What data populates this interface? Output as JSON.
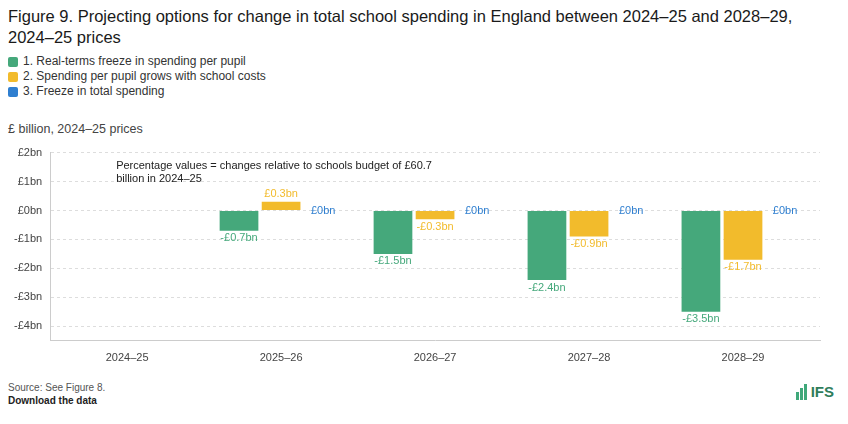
{
  "chart_data": {
    "type": "bar",
    "title": "Figure 9. Projecting options for change in total school spending in England between 2024–25 and 2028–29, 2024–25 prices",
    "y_label": "£ billion, 2024–25 prices",
    "annotation": "Percentage values = changes relative to schools budget of £60.7 billion in 2024–25",
    "source": "Source: See Figure 8.",
    "footer_link": "Download the data",
    "logo": "IFS",
    "categories": [
      "2024–25",
      "2025–26",
      "2026–27",
      "2027–28",
      "2028–29"
    ],
    "series": [
      {
        "name": "1. Real-terms freeze in spending per pupil",
        "color": "#45a87b",
        "values": [
          null,
          -0.7,
          -1.5,
          -2.4,
          -3.5
        ],
        "value_labels": [
          null,
          "-£0.7bn",
          "-£1.5bn",
          "-£2.4bn",
          "-£3.5bn"
        ]
      },
      {
        "name": "2. Spending per pupil grows with school costs",
        "color": "#f2bb2c",
        "values": [
          null,
          0.3,
          -0.3,
          -0.9,
          -1.7
        ],
        "value_labels": [
          null,
          "£0.3bn",
          "-£0.3bn",
          "-£0.9bn",
          "-£1.7bn"
        ]
      },
      {
        "name": "3. Freeze in total spending",
        "color": "#2f7fd0",
        "values": [
          null,
          0,
          0,
          0,
          0
        ],
        "value_labels": [
          null,
          "£0bn",
          "£0bn",
          "£0bn",
          "£0bn"
        ]
      }
    ],
    "ylim": [
      -4.5,
      2
    ],
    "yticks": [
      {
        "value": -4,
        "label": "-£4bn"
      },
      {
        "value": -3,
        "label": "-£3bn"
      },
      {
        "value": -2,
        "label": "-£2bn"
      },
      {
        "value": -1,
        "label": "-£1bn"
      },
      {
        "value": 0,
        "label": "£0bn"
      },
      {
        "value": 1,
        "label": "£1bn"
      },
      {
        "value": 2,
        "label": "£2bn"
      }
    ],
    "grid": true,
    "legend": "top-left",
    "data_labels": true
  }
}
